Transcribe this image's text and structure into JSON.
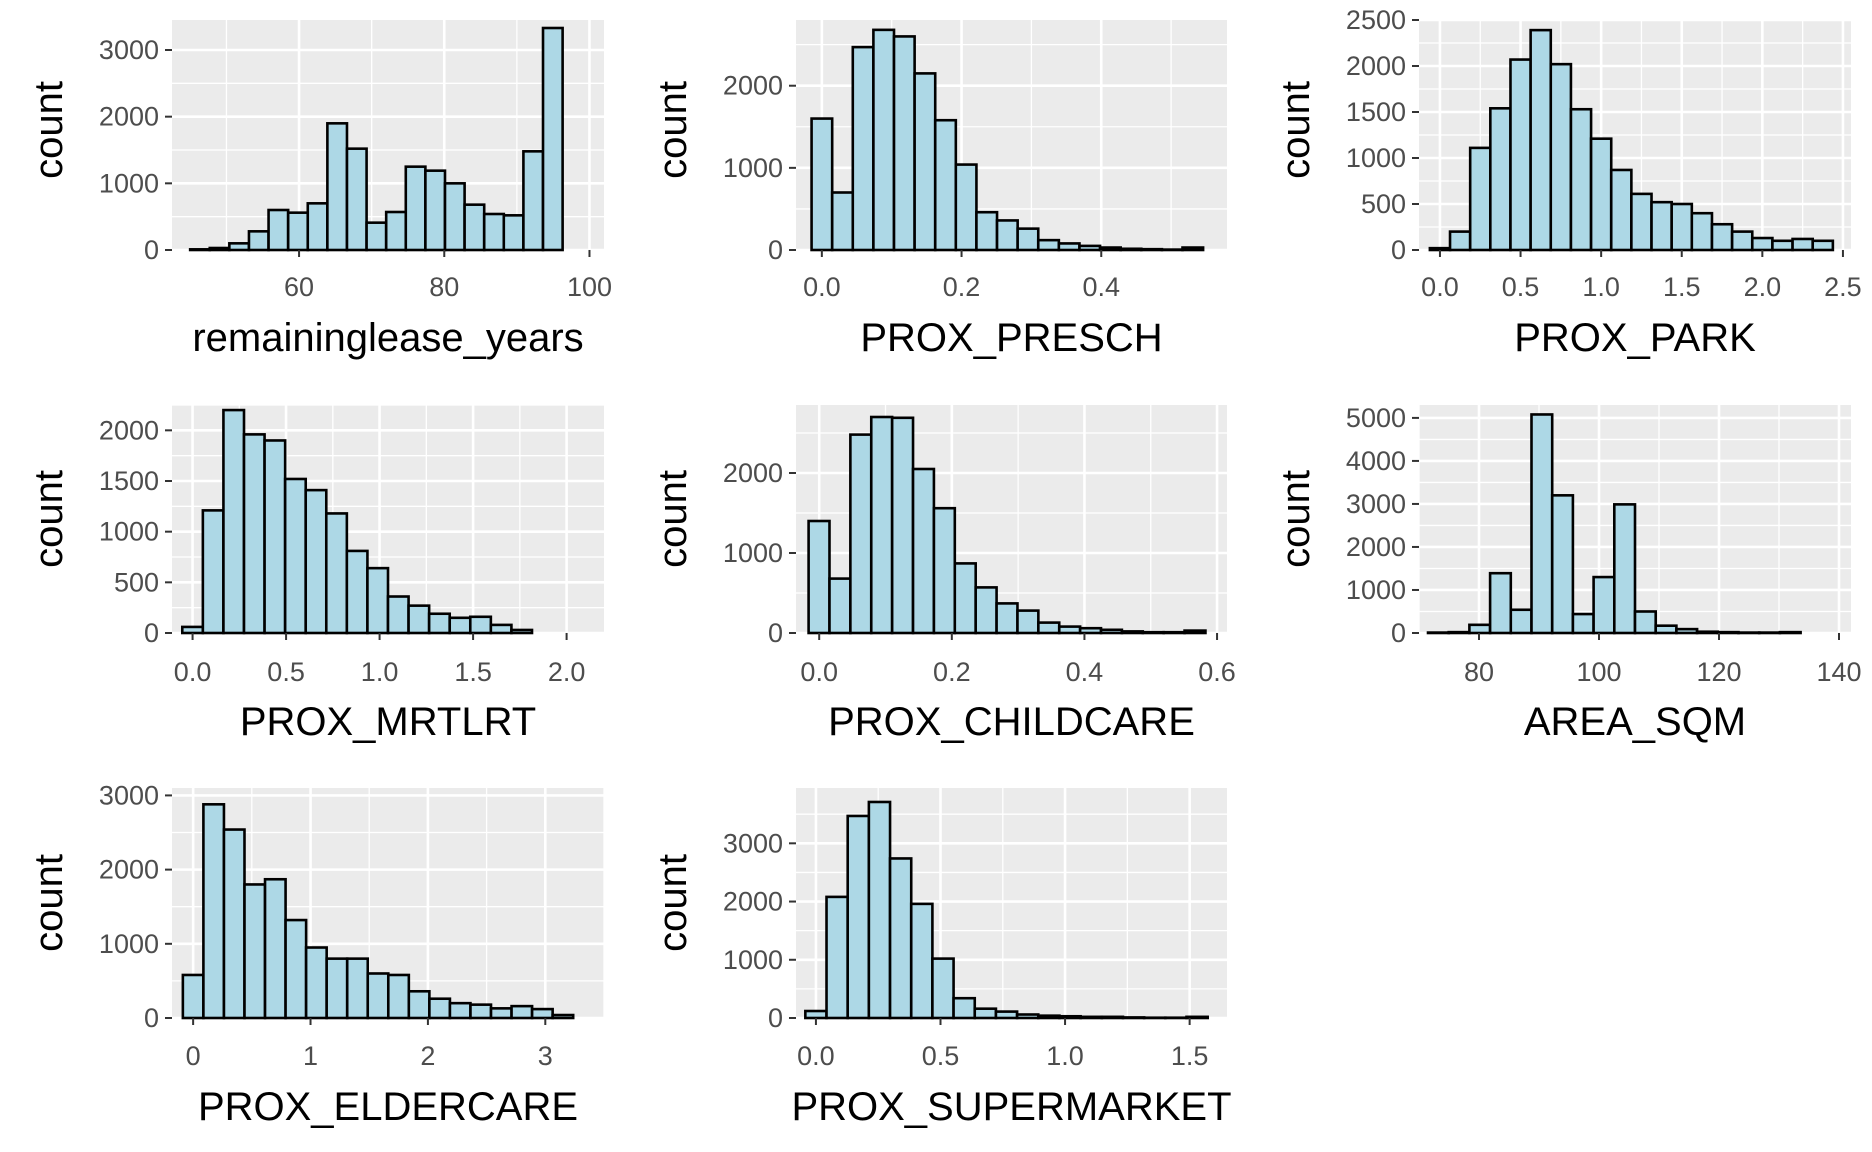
{
  "style": {
    "panel_bg": "#ebebeb",
    "grid_major": "#ffffff",
    "bar_fill": "#add8e6",
    "bar_stroke": "#000000",
    "tick_color": "#333333",
    "text_color": "#4d4d4d"
  },
  "chart_data": [
    {
      "type": "bar",
      "title": "",
      "xlabel": "remaininglease_years",
      "ylabel": "count",
      "xlim": [
        42.5,
        102
      ],
      "ylim": [
        0,
        3450
      ],
      "xticks": [
        60,
        80,
        100
      ],
      "xtick_labels": [
        "60",
        "80",
        "100"
      ],
      "yticks": [
        0,
        1000,
        2000,
        3000
      ],
      "ytick_labels": [
        "0",
        "1000",
        "2000",
        "3000"
      ],
      "bin_start": 45,
      "bin_width": 2.7,
      "values": [
        10,
        30,
        100,
        280,
        600,
        560,
        700,
        1900,
        1520,
        410,
        570,
        1250,
        1190,
        1000,
        680,
        540,
        520,
        1480,
        3330
      ]
    },
    {
      "type": "bar",
      "title": "",
      "xlabel": "PROX_PRESCH",
      "ylabel": "count",
      "xlim": [
        -0.037,
        0.58
      ],
      "ylim": [
        0,
        2800
      ],
      "xticks": [
        0.0,
        0.2,
        0.4
      ],
      "xtick_labels": [
        "0.0",
        "0.2",
        "0.4"
      ],
      "yticks": [
        0,
        1000,
        2000
      ],
      "ytick_labels": [
        "0",
        "1000",
        "2000"
      ],
      "bin_start": -0.0147,
      "bin_width": 0.0295,
      "values": [
        1600,
        700,
        2470,
        2680,
        2600,
        2150,
        1580,
        1040,
        460,
        360,
        260,
        120,
        80,
        50,
        30,
        15,
        10,
        5,
        30
      ]
    },
    {
      "type": "bar",
      "title": "",
      "xlabel": "PROX_PARK",
      "ylabel": "count",
      "xlim": [
        -0.13,
        2.55
      ],
      "ylim": [
        0,
        2500
      ],
      "xticks": [
        0.0,
        0.5,
        1.0,
        1.5,
        2.0,
        2.5
      ],
      "xtick_labels": [
        "0.0",
        "0.5",
        "1.0",
        "1.5",
        "2.0",
        "2.5"
      ],
      "yticks": [
        0,
        500,
        1000,
        1500,
        2000,
        2500
      ],
      "ytick_labels": [
        "0",
        "500",
        "1000",
        "1500",
        "2000",
        "2500"
      ],
      "bin_start": -0.0625,
      "bin_width": 0.125,
      "values": [
        20,
        200,
        1110,
        1540,
        2070,
        2390,
        2020,
        1530,
        1210,
        870,
        610,
        520,
        500,
        400,
        280,
        200,
        130,
        100,
        120,
        100
      ]
    },
    {
      "type": "bar",
      "title": "",
      "xlabel": "PROX_MRTLRT",
      "ylabel": "count",
      "xlim": [
        -0.11,
        2.2
      ],
      "ylim": [
        0,
        2250
      ],
      "xticks": [
        0.0,
        0.5,
        1.0,
        1.5,
        2.0
      ],
      "xtick_labels": [
        "0.0",
        "0.5",
        "1.0",
        "1.5",
        "2.0"
      ],
      "yticks": [
        0,
        500,
        1000,
        1500,
        2000
      ],
      "ytick_labels": [
        "0",
        "500",
        "1000",
        "1500",
        "2000"
      ],
      "bin_start": -0.055,
      "bin_width": 0.11,
      "values": [
        60,
        1210,
        2200,
        1960,
        1900,
        1520,
        1410,
        1180,
        810,
        640,
        360,
        270,
        190,
        150,
        160,
        80,
        30
      ]
    },
    {
      "type": "bar",
      "title": "",
      "xlabel": "PROX_CHILDCARE",
      "ylabel": "count",
      "xlim": [
        -0.035,
        0.615
      ],
      "ylim": [
        0,
        2850
      ],
      "xticks": [
        0.0,
        0.2,
        0.4,
        0.6
      ],
      "xtick_labels": [
        "0.0",
        "0.2",
        "0.4",
        "0.6"
      ],
      "yticks": [
        0,
        1000,
        2000
      ],
      "ytick_labels": [
        "0",
        "1000",
        "2000"
      ],
      "bin_start": -0.016,
      "bin_width": 0.0315,
      "values": [
        1400,
        680,
        2480,
        2700,
        2690,
        2050,
        1560,
        870,
        570,
        370,
        280,
        130,
        80,
        60,
        40,
        20,
        10,
        10,
        30
      ]
    },
    {
      "type": "bar",
      "title": "",
      "xlabel": "AREA_SQM",
      "ylabel": "count",
      "xlim": [
        70,
        142
      ],
      "ylim": [
        0,
        5300
      ],
      "xticks": [
        80,
        100,
        120,
        140
      ],
      "xtick_labels": [
        "80",
        "100",
        "120",
        "140"
      ],
      "yticks": [
        0,
        1000,
        2000,
        3000,
        4000,
        5000
      ],
      "ytick_labels": [
        "0",
        "1000",
        "2000",
        "3000",
        "4000",
        "5000"
      ],
      "bin_start": 71.5,
      "bin_width": 3.45,
      "values": [
        10,
        20,
        190,
        1390,
        540,
        5080,
        3200,
        440,
        1300,
        2990,
        500,
        170,
        90,
        30,
        20,
        10,
        10,
        20
      ]
    },
    {
      "type": "bar",
      "title": "",
      "xlabel": "PROX_ELDERCARE",
      "ylabel": "count",
      "xlim": [
        -0.18,
        3.5
      ],
      "ylim": [
        0,
        3100
      ],
      "xticks": [
        0,
        1,
        2,
        3
      ],
      "xtick_labels": [
        "0",
        "1",
        "2",
        "3"
      ],
      "yticks": [
        0,
        1000,
        2000,
        3000
      ],
      "ytick_labels": [
        "0",
        "1000",
        "2000",
        "3000"
      ],
      "bin_start": -0.0875,
      "bin_width": 0.175,
      "values": [
        580,
        2880,
        2540,
        1800,
        1870,
        1320,
        950,
        800,
        800,
        600,
        580,
        360,
        260,
        200,
        180,
        130,
        160,
        120,
        40
      ]
    },
    {
      "type": "bar",
      "title": "",
      "xlabel": "PROX_SUPERMARKET",
      "ylabel": "count",
      "xlim": [
        -0.08,
        1.65
      ],
      "ylim": [
        0,
        3950
      ],
      "xticks": [
        0.0,
        0.5,
        1.0,
        1.5
      ],
      "xtick_labels": [
        "0.0",
        "0.5",
        "1.0",
        "1.5"
      ],
      "yticks": [
        0,
        1000,
        2000,
        3000
      ],
      "ytick_labels": [
        "0",
        "1000",
        "2000",
        "3000"
      ],
      "bin_start": -0.0425,
      "bin_width": 0.085,
      "values": [
        120,
        2080,
        3470,
        3710,
        2740,
        1960,
        1020,
        340,
        160,
        110,
        60,
        40,
        30,
        20,
        20,
        10,
        5,
        5,
        20
      ]
    }
  ]
}
